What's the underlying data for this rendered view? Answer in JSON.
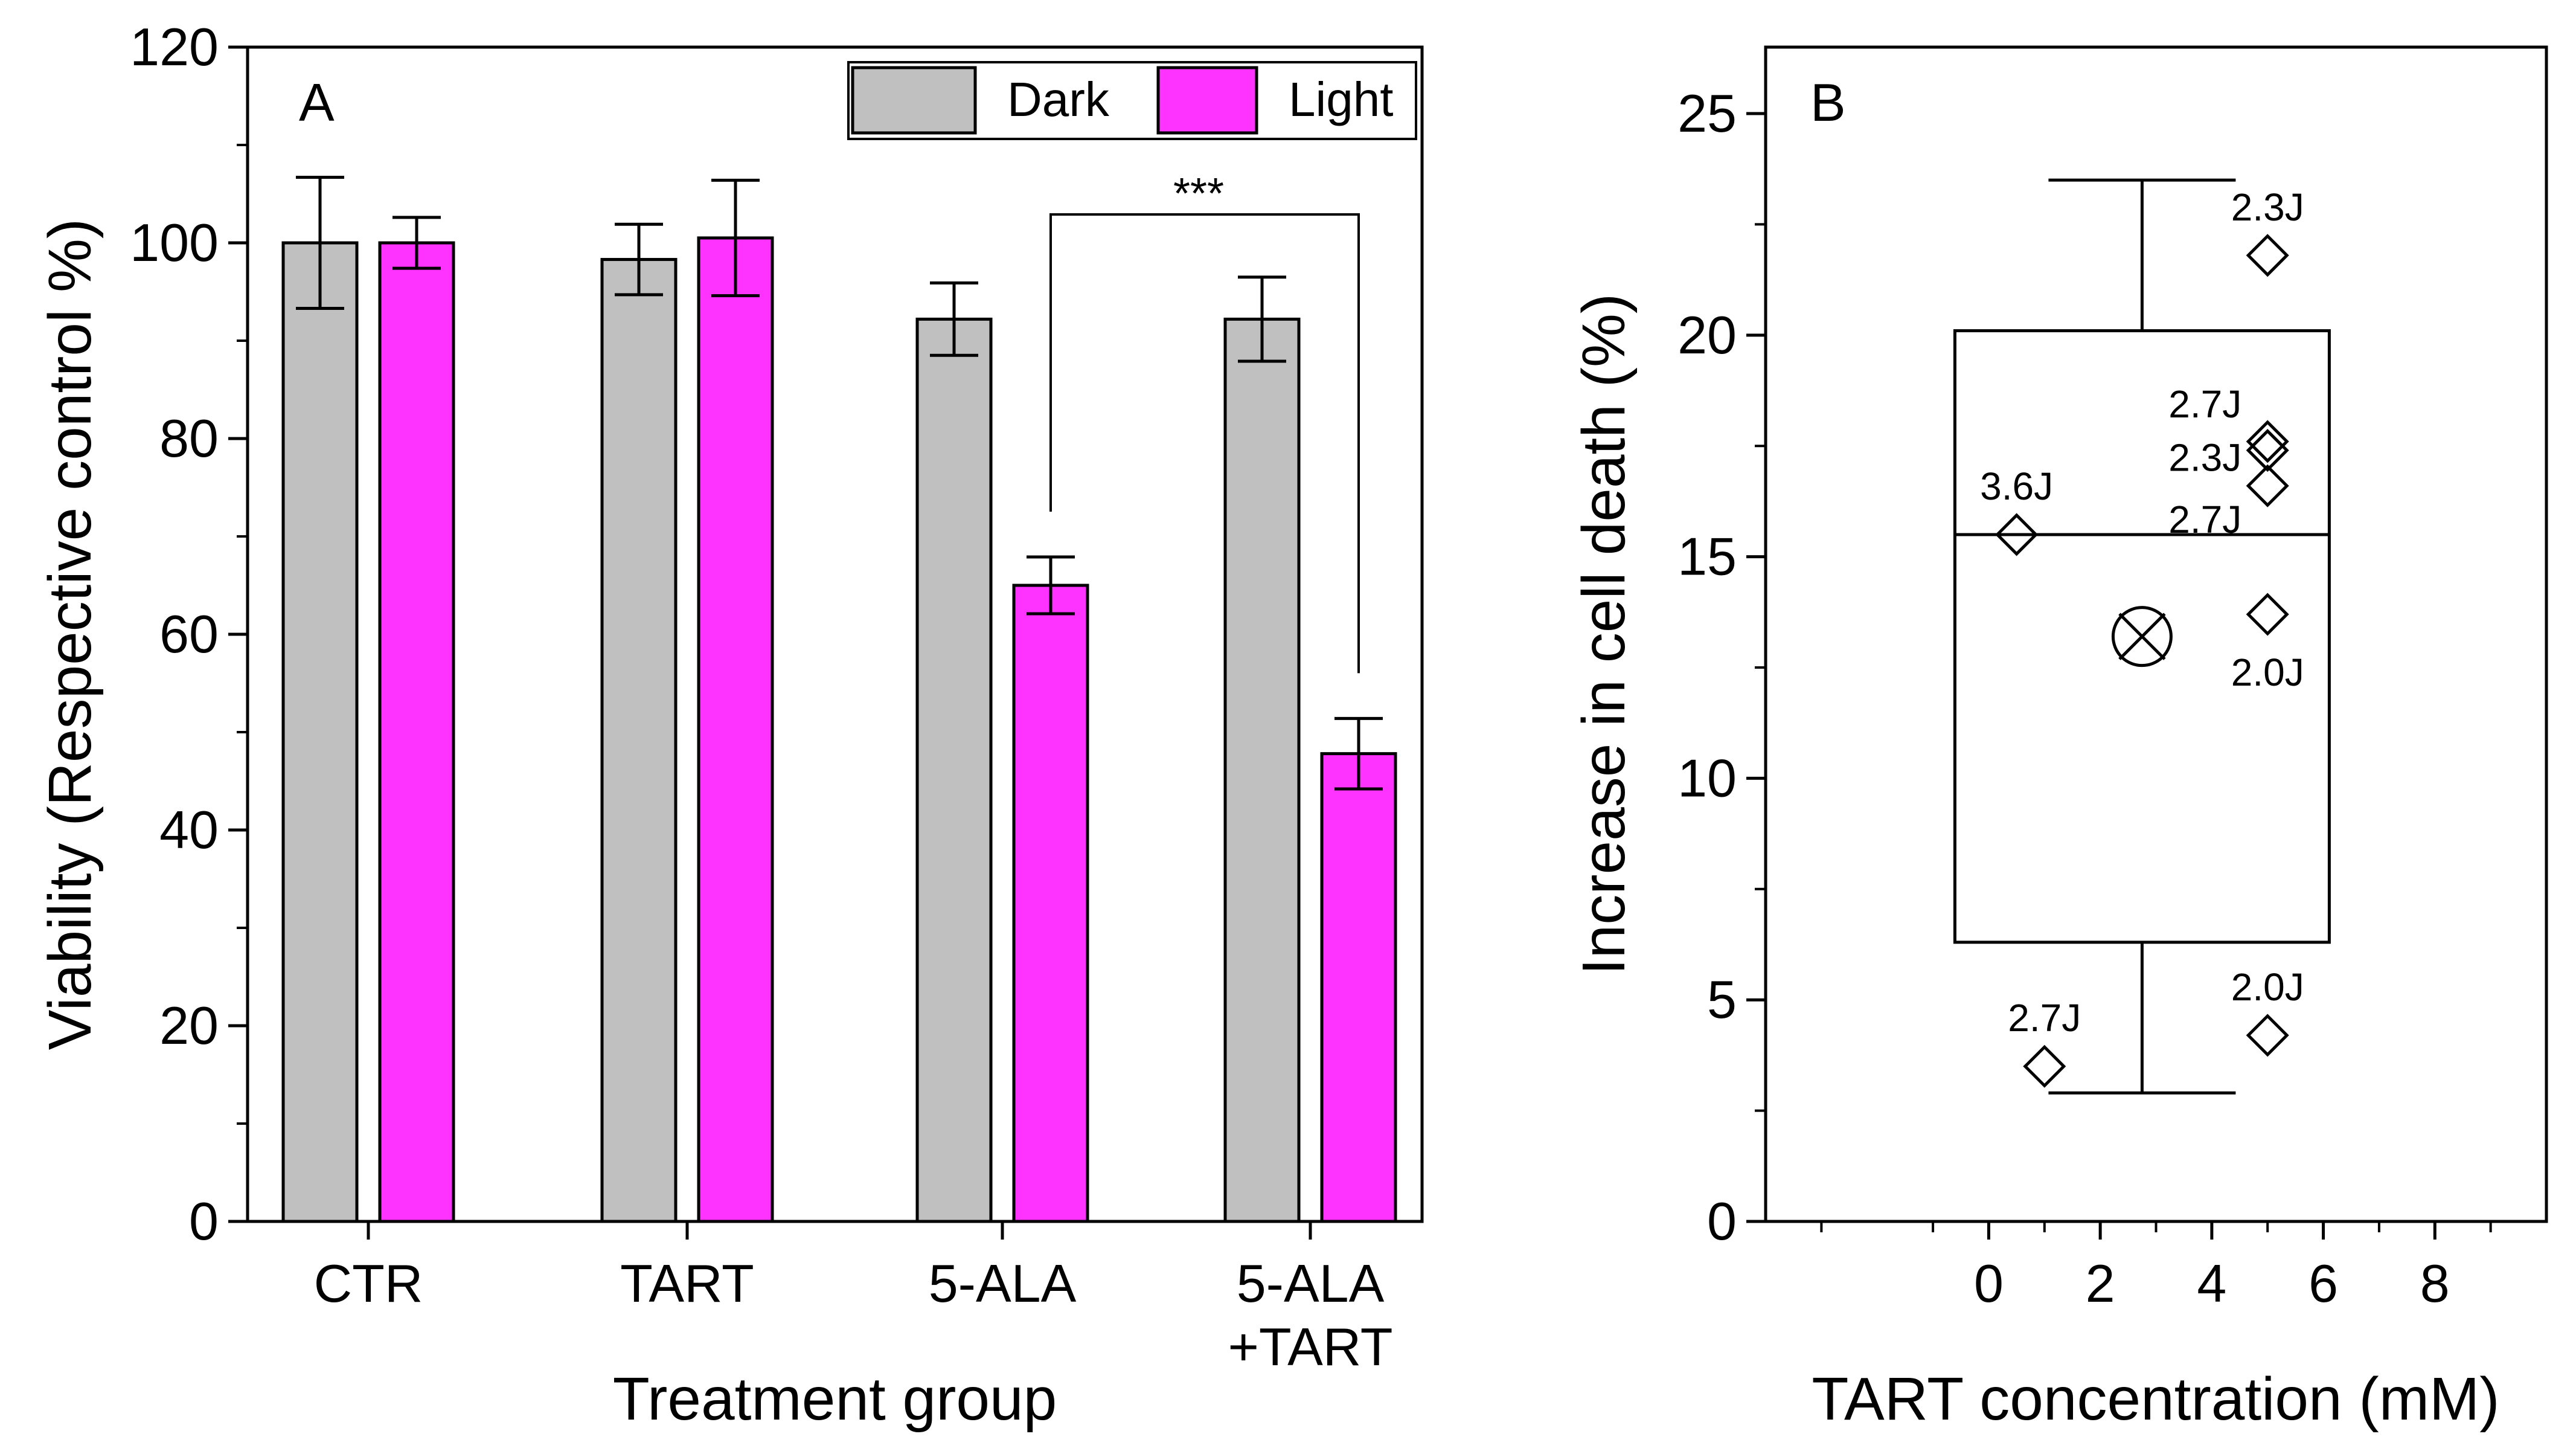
{
  "chart_data": [
    {
      "panel": "A",
      "type": "bar",
      "xlabel": "Treatment group",
      "ylabel": "Viability (Respective control %)",
      "ylim": [
        0,
        120
      ],
      "yticks": [
        0,
        20,
        40,
        60,
        80,
        100,
        120
      ],
      "categories": [
        {
          "lines": [
            "CTR"
          ]
        },
        {
          "lines": [
            "TART"
          ]
        },
        {
          "lines": [
            "5-ALA"
          ]
        },
        {
          "lines": [
            "5-ALA",
            "+TART"
          ]
        }
      ],
      "series": [
        {
          "name": "Dark",
          "color": "#C0C0C0",
          "values": [
            100.0,
            98.3,
            92.2,
            92.2
          ],
          "errors": [
            6.7,
            3.6,
            3.7,
            4.3
          ]
        },
        {
          "name": "Light",
          "color": "#FF33FF",
          "values": [
            100.0,
            100.5,
            65.0,
            47.8
          ],
          "errors": [
            2.6,
            5.9,
            2.9,
            3.6
          ]
        }
      ],
      "legend": {
        "position": "top-right",
        "entries": [
          "Dark",
          "Light"
        ]
      },
      "significance": {
        "label": "***",
        "from": "5-ALA Light",
        "to": "5-ALA +TART Light"
      }
    },
    {
      "panel": "B",
      "type": "box",
      "xlabel": "TART concentration (mM)",
      "ylabel": "Increase in cell death (%)",
      "xlim": [
        -4,
        10
      ],
      "ylim": [
        0,
        26.5
      ],
      "xticks": [
        0,
        2,
        4,
        6,
        8
      ],
      "yticks": [
        0,
        5,
        10,
        15,
        20,
        25
      ],
      "box": {
        "x": 2.75,
        "q1": 6.3,
        "median": 15.5,
        "q3": 20.1,
        "whisker_low": 2.9,
        "whisker_high": 23.5,
        "mean": 13.2
      },
      "points": [
        {
          "x": 0.5,
          "y": 15.5,
          "label": "3.6J",
          "label_pos": "above"
        },
        {
          "x": 1.0,
          "y": 3.5,
          "label": "2.7J",
          "label_pos": "above"
        },
        {
          "x": 5.0,
          "y": 21.8,
          "label": "2.3J",
          "label_pos": "above"
        },
        {
          "x": 5.0,
          "y": 17.6,
          "label": "2.7J",
          "label_pos": "upper-left"
        },
        {
          "x": 5.0,
          "y": 17.4,
          "label": "2.3J",
          "label_pos": "left"
        },
        {
          "x": 5.0,
          "y": 16.6,
          "label": "2.7J",
          "label_pos": "lower-left"
        },
        {
          "x": 5.0,
          "y": 13.7,
          "label": "2.0J",
          "label_pos": "below"
        },
        {
          "x": 5.0,
          "y": 4.2,
          "label": "2.0J",
          "label_pos": "above"
        }
      ]
    }
  ]
}
